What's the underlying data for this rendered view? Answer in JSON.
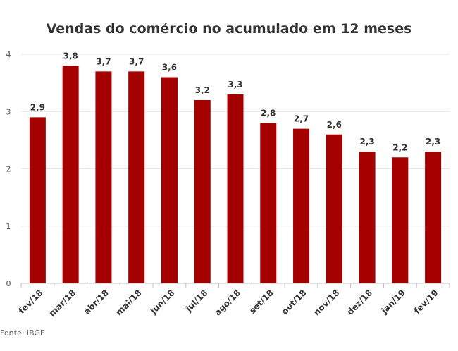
{
  "chart_data": {
    "type": "bar",
    "title": "Vendas do comércio no acumulado em 12 meses",
    "categories": [
      "fev/18",
      "mar/18",
      "abr/18",
      "mai/18",
      "jun/18",
      "jul/18",
      "ago/18",
      "set/18",
      "out/18",
      "nov/18",
      "dez/18",
      "jan/19",
      "fev/19"
    ],
    "values": [
      2.9,
      3.8,
      3.7,
      3.7,
      3.6,
      3.2,
      3.3,
      2.8,
      2.7,
      2.6,
      2.3,
      2.2,
      2.3
    ],
    "data_labels": [
      "2,9",
      "3,8",
      "3,7",
      "3,7",
      "3,6",
      "3,2",
      "3,3",
      "2,8",
      "2,7",
      "2,6",
      "2,3",
      "2,2",
      "2,3"
    ],
    "yticks": [
      0,
      1,
      2,
      3,
      4
    ],
    "ylim": [
      0,
      4
    ],
    "xlabel": "",
    "ylabel": "",
    "grid": true,
    "bar_color": "#a50000"
  },
  "source": "Fonte: IBGE"
}
